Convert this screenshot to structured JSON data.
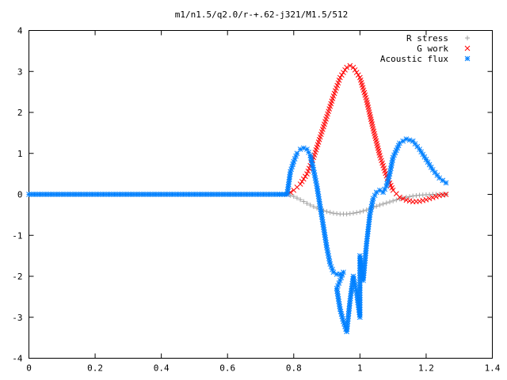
{
  "chart_data": {
    "type": "scatter",
    "title": "m1/n1.5/q2.0/r-+.62-j321/M1.5/512",
    "xlabel": "",
    "ylabel": "",
    "xlim": [
      0,
      1.4
    ],
    "ylim": [
      -4,
      4
    ],
    "x_ticks": [
      "0",
      "0.2",
      "0.4",
      "0.6",
      "0.8",
      "1",
      "1.2",
      "1.4"
    ],
    "y_ticks": [
      "4",
      "3",
      "2",
      "1",
      "0",
      "-1",
      "-2",
      "-3",
      "-4"
    ],
    "grid": false,
    "legend_position": "top-right",
    "series": [
      {
        "name": "R stress",
        "marker": "+",
        "color": "#a0a0a0",
        "points": [
          [
            0.0,
            0
          ],
          [
            0.05,
            0
          ],
          [
            0.1,
            0
          ],
          [
            0.15,
            0
          ],
          [
            0.2,
            0
          ],
          [
            0.25,
            0
          ],
          [
            0.3,
            0
          ],
          [
            0.35,
            0
          ],
          [
            0.4,
            0
          ],
          [
            0.45,
            0
          ],
          [
            0.5,
            0
          ],
          [
            0.55,
            0
          ],
          [
            0.6,
            0
          ],
          [
            0.65,
            0
          ],
          [
            0.7,
            0
          ],
          [
            0.75,
            0
          ],
          [
            0.78,
            0
          ],
          [
            0.8,
            -0.05
          ],
          [
            0.82,
            -0.13
          ],
          [
            0.84,
            -0.22
          ],
          [
            0.86,
            -0.3
          ],
          [
            0.88,
            -0.37
          ],
          [
            0.9,
            -0.42
          ],
          [
            0.92,
            -0.46
          ],
          [
            0.94,
            -0.48
          ],
          [
            0.96,
            -0.48
          ],
          [
            0.98,
            -0.46
          ],
          [
            1.0,
            -0.43
          ],
          [
            1.02,
            -0.38
          ],
          [
            1.04,
            -0.32
          ],
          [
            1.06,
            -0.26
          ],
          [
            1.08,
            -0.21
          ],
          [
            1.1,
            -0.16
          ],
          [
            1.12,
            -0.11
          ],
          [
            1.14,
            -0.07
          ],
          [
            1.16,
            -0.04
          ],
          [
            1.18,
            -0.02
          ],
          [
            1.2,
            -0.01
          ],
          [
            1.22,
            0
          ],
          [
            1.24,
            0
          ],
          [
            1.26,
            0
          ]
        ]
      },
      {
        "name": "G work",
        "marker": "x",
        "color": "#ff0000",
        "points": [
          [
            0.78,
            0
          ],
          [
            0.8,
            0.1
          ],
          [
            0.82,
            0.25
          ],
          [
            0.84,
            0.5
          ],
          [
            0.86,
            0.9
          ],
          [
            0.88,
            1.4
          ],
          [
            0.9,
            1.9
          ],
          [
            0.92,
            2.4
          ],
          [
            0.94,
            2.85
          ],
          [
            0.96,
            3.1
          ],
          [
            0.97,
            3.14
          ],
          [
            0.98,
            3.1
          ],
          [
            1.0,
            2.85
          ],
          [
            1.02,
            2.3
          ],
          [
            1.04,
            1.6
          ],
          [
            1.06,
            0.95
          ],
          [
            1.08,
            0.45
          ],
          [
            1.1,
            0.1
          ],
          [
            1.12,
            -0.07
          ],
          [
            1.14,
            -0.14
          ],
          [
            1.16,
            -0.18
          ],
          [
            1.18,
            -0.17
          ],
          [
            1.2,
            -0.13
          ],
          [
            1.22,
            -0.08
          ],
          [
            1.24,
            -0.03
          ],
          [
            1.26,
            0
          ]
        ]
      },
      {
        "name": "Acoustic flux",
        "marker": "*",
        "color": "#0080ff",
        "points": [
          [
            0.0,
            0
          ],
          [
            0.05,
            0
          ],
          [
            0.1,
            0
          ],
          [
            0.15,
            0
          ],
          [
            0.2,
            0
          ],
          [
            0.25,
            0
          ],
          [
            0.3,
            0
          ],
          [
            0.35,
            0
          ],
          [
            0.4,
            0
          ],
          [
            0.45,
            0
          ],
          [
            0.5,
            0
          ],
          [
            0.55,
            0
          ],
          [
            0.6,
            0
          ],
          [
            0.65,
            0
          ],
          [
            0.7,
            0
          ],
          [
            0.75,
            0
          ],
          [
            0.78,
            0
          ],
          [
            0.79,
            0.55
          ],
          [
            0.8,
            0.8
          ],
          [
            0.81,
            1.0
          ],
          [
            0.82,
            1.1
          ],
          [
            0.83,
            1.13
          ],
          [
            0.84,
            1.1
          ],
          [
            0.85,
            0.95
          ],
          [
            0.86,
            0.6
          ],
          [
            0.87,
            0.2
          ],
          [
            0.88,
            -0.3
          ],
          [
            0.89,
            -0.8
          ],
          [
            0.9,
            -1.3
          ],
          [
            0.91,
            -1.7
          ],
          [
            0.92,
            -1.9
          ],
          [
            0.93,
            -1.95
          ],
          [
            0.94,
            -1.95
          ],
          [
            0.95,
            -1.9
          ],
          [
            0.93,
            -2.3
          ],
          [
            0.94,
            -2.8
          ],
          [
            0.95,
            -3.1
          ],
          [
            0.96,
            -3.35
          ],
          [
            0.97,
            -2.6
          ],
          [
            0.98,
            -2.0
          ],
          [
            0.99,
            -2.4
          ],
          [
            1.0,
            -3.0
          ],
          [
            1.0,
            -1.5
          ],
          [
            1.01,
            -2.1
          ],
          [
            1.02,
            -1.2
          ],
          [
            1.03,
            -0.5
          ],
          [
            1.04,
            -0.1
          ],
          [
            1.05,
            0.05
          ],
          [
            1.06,
            0.1
          ],
          [
            1.07,
            0.05
          ],
          [
            1.08,
            0.2
          ],
          [
            1.09,
            0.5
          ],
          [
            1.1,
            0.9
          ],
          [
            1.12,
            1.25
          ],
          [
            1.14,
            1.35
          ],
          [
            1.16,
            1.3
          ],
          [
            1.18,
            1.1
          ],
          [
            1.2,
            0.85
          ],
          [
            1.22,
            0.6
          ],
          [
            1.24,
            0.4
          ],
          [
            1.26,
            0.28
          ]
        ]
      }
    ]
  }
}
